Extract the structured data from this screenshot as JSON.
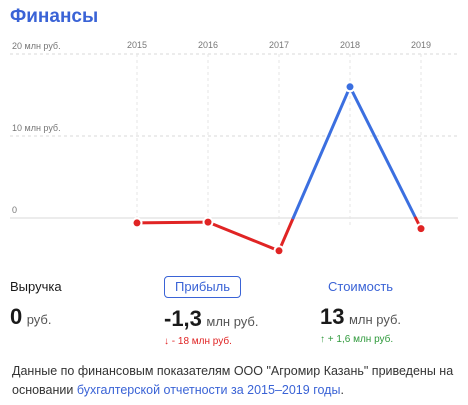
{
  "header": {
    "title": "Финансы"
  },
  "chart_data": {
    "type": "line",
    "x": [
      "2015",
      "2016",
      "2017",
      "2018",
      "2019"
    ],
    "y_tick_labels": [
      "20 млн руб.",
      "10 млн руб.",
      "0"
    ],
    "y_ticks": [
      20,
      10,
      0
    ],
    "ylim": [
      -5,
      20
    ],
    "series": [
      {
        "values": [
          -0.6,
          -0.5,
          -4.0,
          16.0,
          -1.3
        ]
      }
    ],
    "colors": {
      "positive": "#3b6fe0",
      "negative": "#e02424"
    },
    "grid": true
  },
  "metrics": {
    "revenue": {
      "label": "Выручка",
      "value": "0",
      "unit": "руб."
    },
    "profit": {
      "label": "Прибыль",
      "value": "-1,3",
      "unit": "млн руб.",
      "delta": "↓ - 18 млн руб."
    },
    "value": {
      "label": "Стоимость",
      "value": "13",
      "unit": "млн руб.",
      "delta": "↑ + 1,6 млн руб."
    }
  },
  "footer": {
    "text_before": "Данные по финансовым показателям ООО \"Агромир Казань\" приведены на основании ",
    "link": "бухгалтерской отчетности за 2015–2019 годы",
    "text_after": "."
  }
}
